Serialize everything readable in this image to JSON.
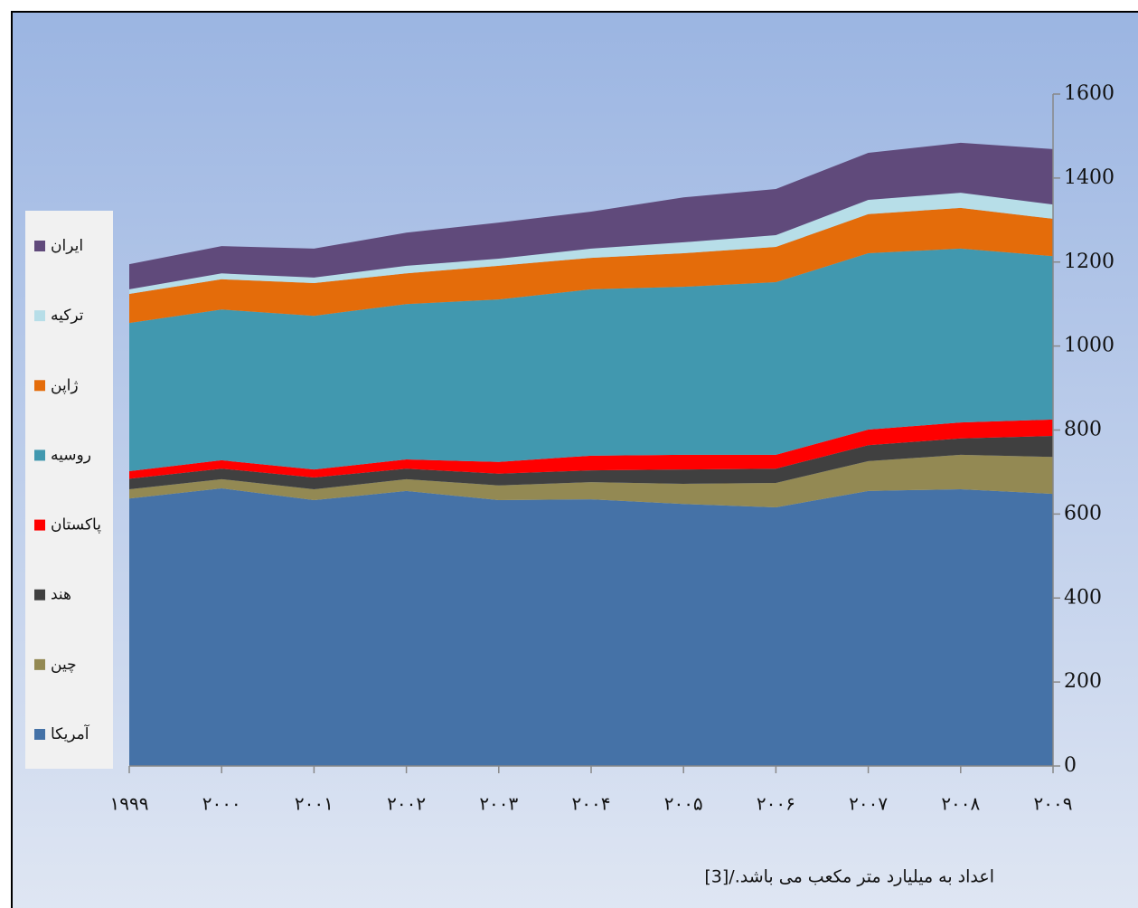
{
  "chart_data": {
    "type": "stacked_area",
    "categories": [
      "۱۹۹۹",
      "۲۰۰۰",
      "۲۰۰۱",
      "۲۰۰۲",
      "۲۰۰۳",
      "۲۰۰۴",
      "۲۰۰۵",
      "۲۰۰۶",
      "۲۰۰۷",
      "۲۰۰۸",
      "۲۰۰۹"
    ],
    "series": [
      {
        "name": "آمریکا",
        "color": "#4572a7",
        "values": [
          637,
          661,
          633,
          655,
          633,
          635,
          624,
          616,
          655,
          659,
          648
        ]
      },
      {
        "name": "چین",
        "color": "#938953",
        "values": [
          22,
          22,
          26,
          28,
          35,
          41,
          48,
          58,
          71,
          82,
          88
        ]
      },
      {
        "name": "هند",
        "color": "#404040",
        "values": [
          25,
          25,
          28,
          25,
          28,
          28,
          34,
          34,
          38,
          39,
          50
        ]
      },
      {
        "name": "پاکستان",
        "color": "#ff0000",
        "values": [
          18,
          20,
          19,
          22,
          28,
          35,
          35,
          33,
          37,
          38,
          39
        ]
      },
      {
        "name": "روسیه",
        "color": "#4198af",
        "values": [
          353,
          359,
          366,
          370,
          387,
          396,
          400,
          411,
          420,
          414,
          389
        ]
      },
      {
        "name": "ژاپن",
        "color": "#e46c0a",
        "values": [
          69,
          72,
          78,
          73,
          80,
          75,
          80,
          84,
          93,
          97,
          89
        ]
      },
      {
        "name": "ترکیه",
        "color": "#b7dee8",
        "values": [
          11,
          14,
          13,
          18,
          17,
          22,
          26,
          28,
          34,
          36,
          34
        ]
      },
      {
        "name": "ایران",
        "color": "#604a7b",
        "values": [
          60,
          65,
          69,
          79,
          86,
          88,
          107,
          110,
          112,
          119,
          132
        ]
      }
    ],
    "ylim": [
      0,
      1600
    ],
    "yticks": [
      0,
      200,
      400,
      600,
      800,
      1000,
      1200,
      1400,
      1600
    ],
    "annotation": "اعداد به میلیارد متر مکعب می باشد./[3]"
  }
}
